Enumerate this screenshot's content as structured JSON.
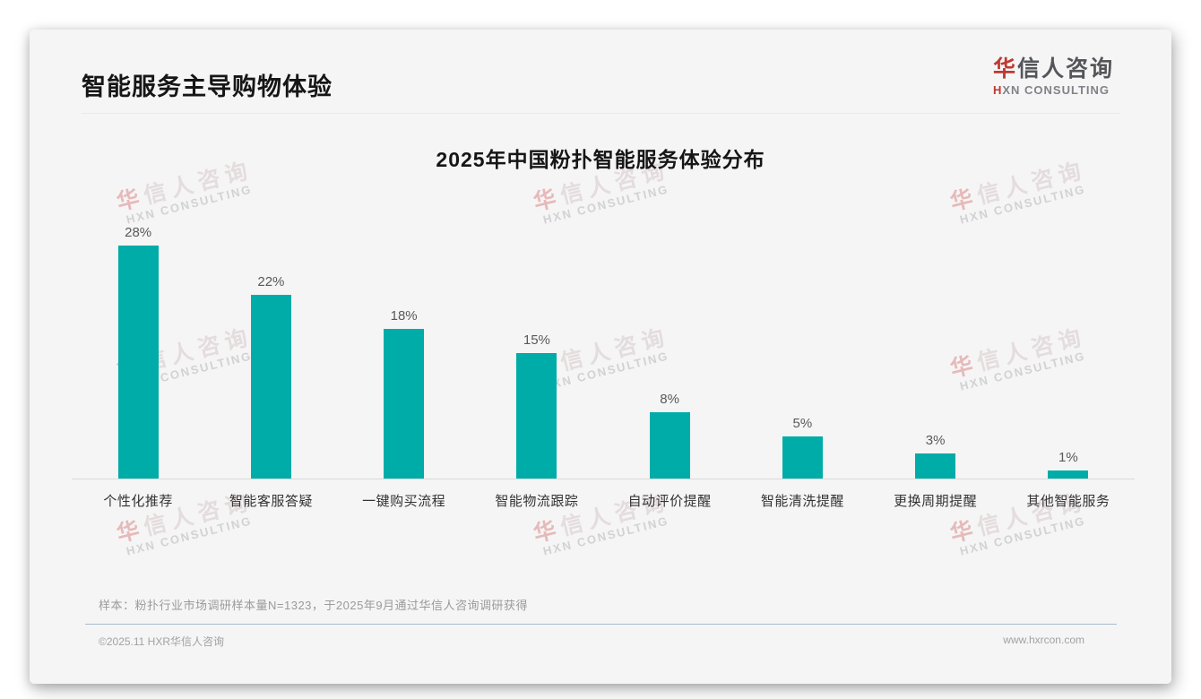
{
  "page": {
    "title": "智能服务主导购物体验"
  },
  "logo": {
    "cn_first": "华",
    "cn_rest": "信人咨询",
    "en_first": "H",
    "en_rest": "XN CONSULTING"
  },
  "watermark": {
    "line1_first": "华",
    "line1_rest": "信人咨询",
    "line2": "HXN CONSULTING"
  },
  "chart_data": {
    "type": "bar",
    "title": "2025年中国粉扑智能服务体验分布",
    "categories": [
      "个性化推荐",
      "智能客服答疑",
      "一键购买流程",
      "智能物流跟踪",
      "自动评价提醒",
      "智能清洗提醒",
      "更换周期提醒",
      "其他智能服务"
    ],
    "values": [
      28,
      22,
      18,
      15,
      8,
      5,
      3,
      1
    ],
    "value_labels": [
      "28%",
      "22%",
      "18%",
      "15%",
      "8%",
      "5%",
      "3%",
      "1%"
    ],
    "unit": "%",
    "bar_color": "#00ACA8",
    "xlabel": "",
    "ylabel": "",
    "ylim": [
      0,
      30
    ],
    "grid": false,
    "legend": "none"
  },
  "footnote": "样本：粉扑行业市场调研样本量N=1323，于2025年9月通过华信人咨询调研获得",
  "footer": {
    "copyright": "©2025.11 HXR华信人咨询",
    "website": "www.hxrcon.com"
  }
}
